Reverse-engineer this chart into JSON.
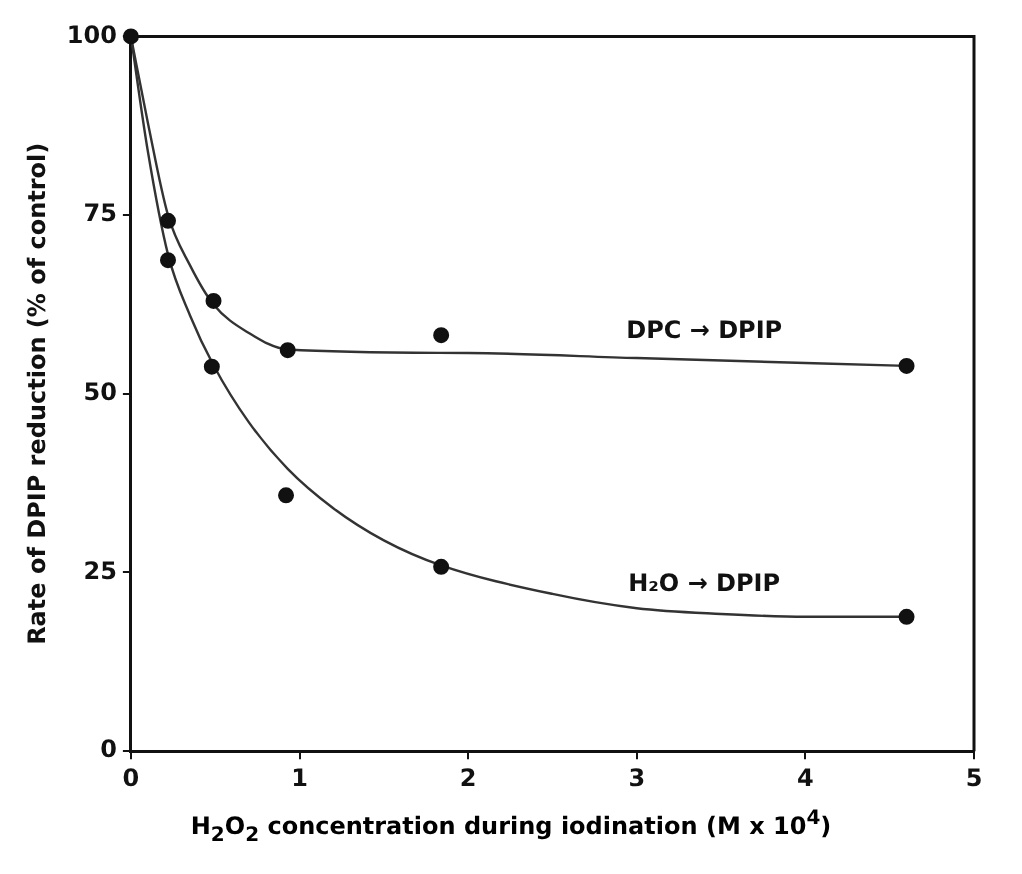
{
  "chart_data": {
    "type": "scatter",
    "xlabel": "H$_{2}$O$_{2}$ concentration during iodination (M x 10$^{4}$)",
    "ylabel": "Rate of DPIP reduction (% of control)",
    "xlim": [
      0,
      5
    ],
    "xticks": [
      0,
      1,
      2,
      3,
      4,
      5
    ],
    "ylim": [
      0,
      100
    ],
    "yticks": [
      0,
      25,
      50,
      75,
      100
    ],
    "grid": false,
    "legend": false,
    "marker": "circle",
    "series": [
      {
        "color": "#111111",
        "x": [
          0,
          0.22,
          0.49,
          0.93,
          1.84,
          4.6
        ],
        "values": [
          100,
          74.2,
          63.0,
          56.1,
          58.2,
          53.9
        ]
      },
      {
        "color": "#111111",
        "x": [
          0.22,
          0.48,
          0.92,
          1.84,
          4.6
        ],
        "values": [
          68.7,
          53.8,
          35.8,
          25.8,
          18.8
        ]
      },
      {
        "type": "line",
        "name": "DPC → DPIP",
        "marker": "none",
        "color": "#333333",
        "x": [
          0,
          0.1,
          0.22,
          0.35,
          0.49,
          0.7,
          0.93,
          2,
          3,
          4.6
        ],
        "values": [
          100,
          88,
          75,
          68,
          62.5,
          58.5,
          56.2,
          55.7,
          55,
          53.9
        ]
      },
      {
        "type": "line",
        "name": "H₂O → DPIP",
        "marker": "none",
        "color": "#333333",
        "x": [
          0,
          0.1,
          0.22,
          0.35,
          0.49,
          0.7,
          0.93,
          1.2,
          1.5,
          1.84,
          2.5,
          3,
          3.5,
          4,
          4.6
        ],
        "values": [
          100,
          84,
          69.5,
          61,
          54,
          46,
          39.5,
          34,
          29.5,
          26,
          22,
          20,
          19.2,
          18.8,
          18.8
        ]
      }
    ]
  }
}
